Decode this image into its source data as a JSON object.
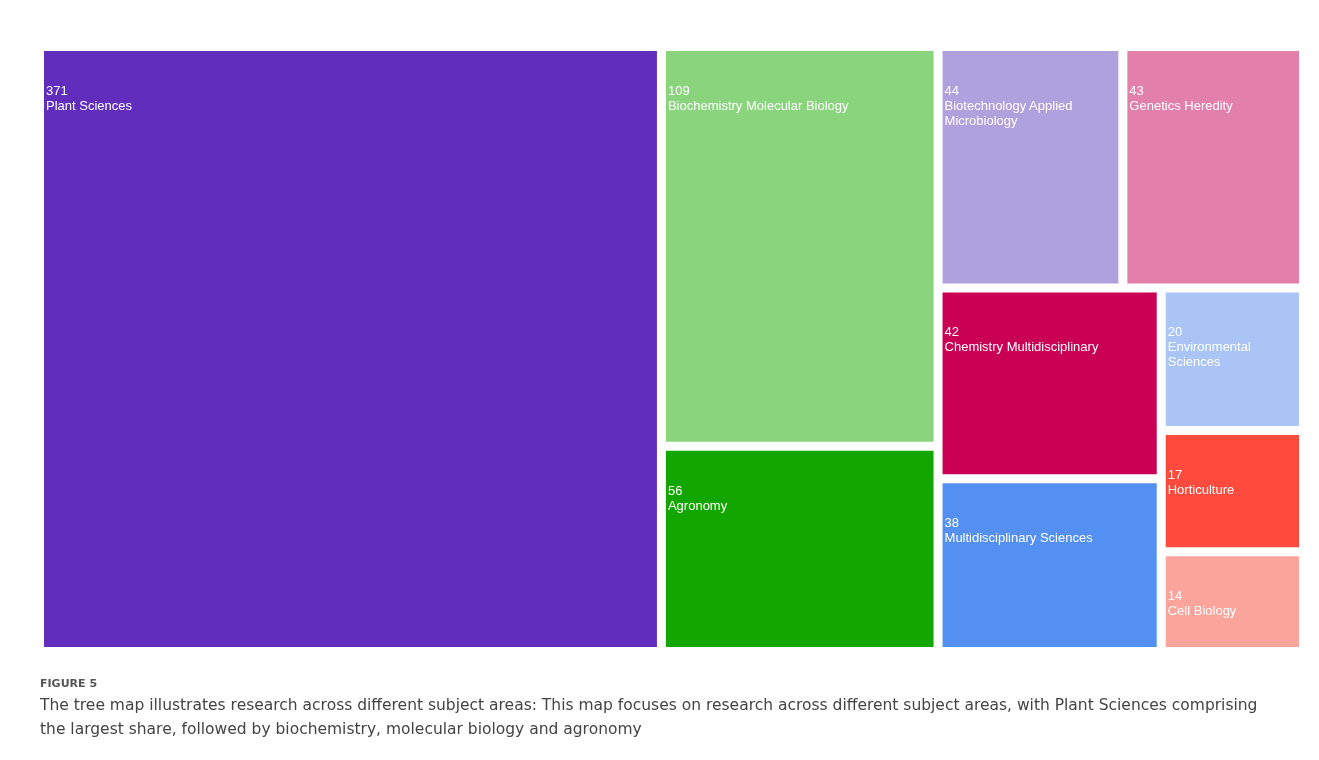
{
  "chart_data": {
    "type": "other",
    "title": "FIGURE 5",
    "annotations": [
      "The tree map illustrates research across different subject areas: This map focuses on research across different subject areas, with Plant Sciences comprising the largest share, followed by biochemistry, molecular biology and agronomy"
    ],
    "categories": [
      "Plant Sciences",
      "Biochemistry Molecular Biology",
      "Agronomy",
      "Biotechnology Applied Microbiology",
      "Genetics Heredity",
      "Chemistry Multidisciplinary",
      "Multidisciplinary Sciences",
      "Environmental Sciences",
      "Horticulture",
      "Cell Biology"
    ],
    "values": [
      371,
      109,
      56,
      44,
      43,
      42,
      38,
      20,
      17,
      14
    ],
    "colors": [
      "#602dbd",
      "#8bd47e",
      "#13a600",
      "#afa0de",
      "#e37fab",
      "#c90053",
      "#5490f2",
      "#a9c4f5",
      "#ff4b3d",
      "#fba49c"
    ],
    "data_labels": true
  }
}
